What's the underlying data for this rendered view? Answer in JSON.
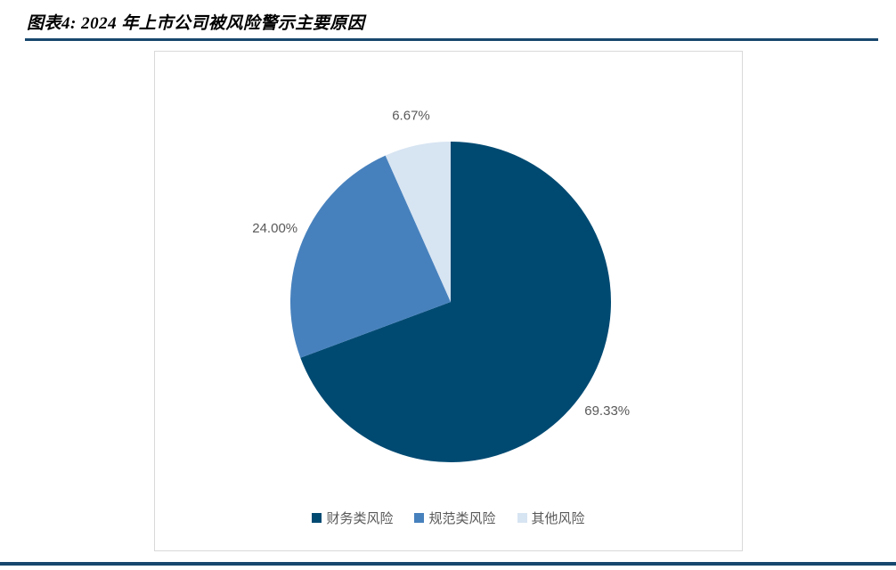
{
  "page": {
    "title": "图表4: 2024 年上市公司被风险警示主要原因",
    "accent_color": "#17476E"
  },
  "chart_data": {
    "type": "pie",
    "title": "2024 年上市公司被风险警示主要原因",
    "series": [
      {
        "name": "财务类风险",
        "value": 69.33,
        "label": "69.33%",
        "color": "#004A72"
      },
      {
        "name": "规范类风险",
        "value": 24.0,
        "label": "24.00%",
        "color": "#4781BD"
      },
      {
        "name": "其他风险",
        "value": 6.67,
        "label": "6.67%",
        "color": "#D7E4F2"
      }
    ],
    "start_angle_deg": 0,
    "direction": "clockwise",
    "legend_position": "bottom",
    "label_color": "#595959"
  }
}
